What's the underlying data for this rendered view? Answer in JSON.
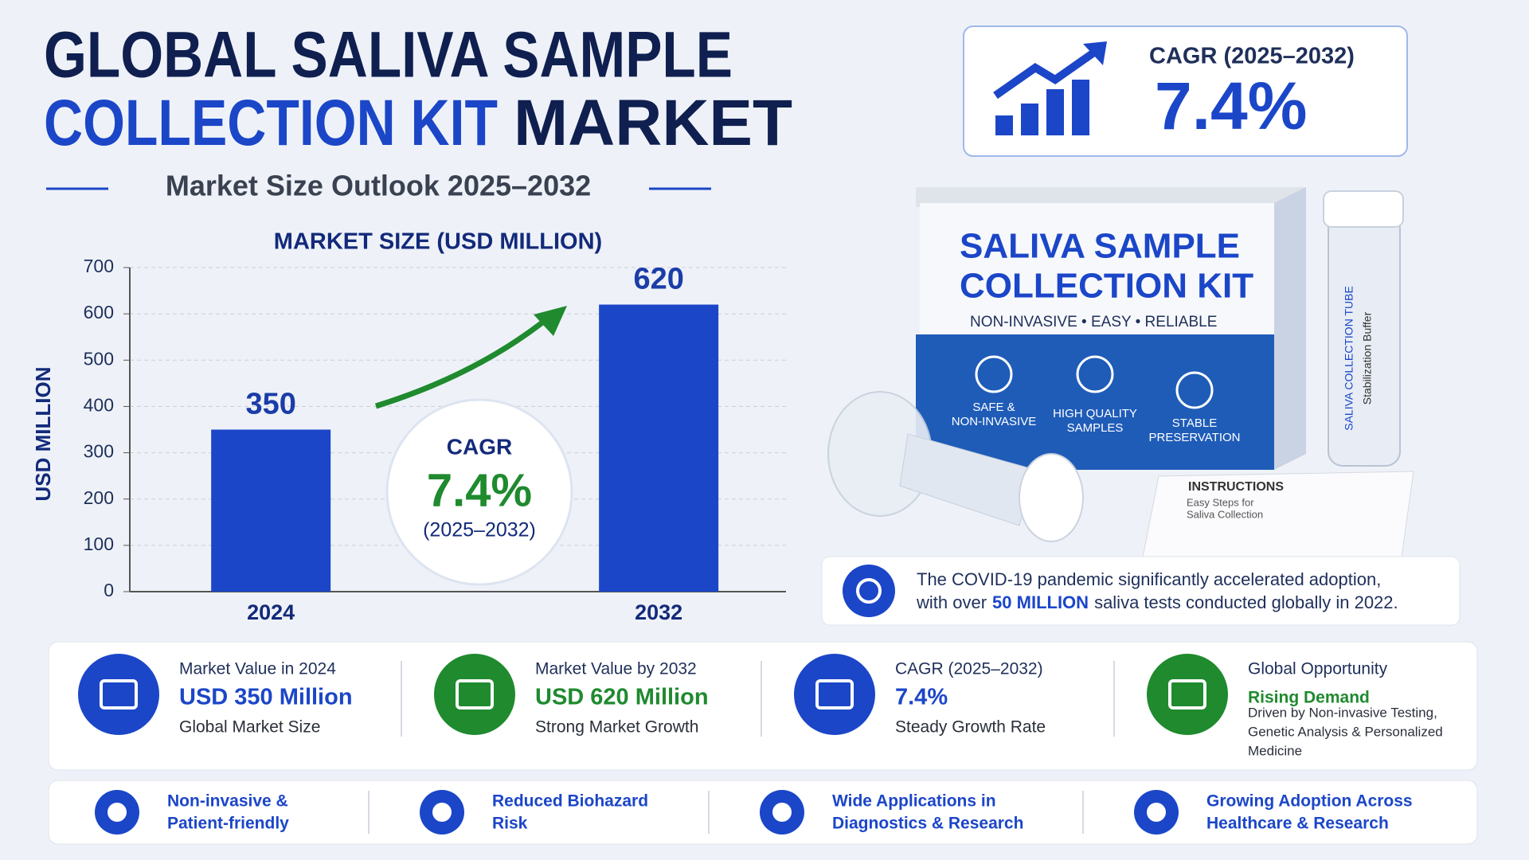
{
  "header": {
    "title_line1": "GLOBAL SALIVA SAMPLE",
    "title_line2_blue": "COLLECTION KIT",
    "title_line2_dark": "MARKET",
    "subtitle": "Market Size Outlook 2025–2032"
  },
  "cagr_box": {
    "label": "CAGR (2025–2032)",
    "value": "7.4%"
  },
  "chart_data": {
    "type": "bar",
    "title": "MARKET SIZE (USD MILLION)",
    "y_label": "USD MILLION",
    "categories": [
      "2024",
      "2032"
    ],
    "values": [
      350,
      620
    ],
    "color": "#1b46c8",
    "ylim": [
      0,
      700
    ],
    "yticks": [
      0,
      100,
      200,
      300,
      400,
      500,
      600,
      700
    ],
    "grid": true,
    "annotation": {
      "label": "CAGR",
      "value": "7.4%",
      "period": "(2025–2032)"
    }
  },
  "product": {
    "box_title_1": "SALIVA SAMPLE",
    "box_title_2": "COLLECTION KIT",
    "tagline": "NON-INVASIVE • EASY • RELIABLE",
    "features": [
      [
        "SAFE &",
        "NON-INVASIVE"
      ],
      [
        "HIGH QUALITY",
        "SAMPLES"
      ],
      [
        "STABLE",
        "PRESERVATION"
      ]
    ],
    "tube_1": "SALIVA COLLECTION TUBE",
    "tube_2": "Stabilization Buffer",
    "instructions": "INSTRUCTIONS",
    "instructions_sub": [
      "Easy Steps for",
      "Saliva Collection"
    ]
  },
  "note": {
    "line1": "The COVID-19 pandemic significantly accelerated adoption,",
    "line2_before": "with over",
    "highlight": "50 MILLION",
    "line2_after": "saliva tests conducted globally in 2022."
  },
  "stats": [
    {
      "title": "Market Value in 2024",
      "value": "USD 350 Million",
      "caption": [
        "Global Market Size"
      ]
    },
    {
      "title": "Market Value by 2032",
      "value": "USD 620 Million",
      "caption": [
        "Strong Market Growth"
      ]
    },
    {
      "title": "CAGR (2025–2032)",
      "value": "7.4%",
      "caption": [
        "Steady Growth Rate"
      ]
    },
    {
      "title": "Global Opportunity",
      "value": "Rising Demand",
      "caption": [
        "Driven by Non-invasive Testing,",
        "Genetic Analysis & Personalized",
        "Medicine"
      ]
    }
  ],
  "features": [
    [
      "Non-invasive &",
      "Patient-friendly"
    ],
    [
      "Reduced Biohazard",
      "Risk"
    ],
    [
      "Wide Applications in",
      "Diagnostics & Research"
    ],
    [
      "Growing Adoption Across",
      "Healthcare & Research"
    ]
  ]
}
